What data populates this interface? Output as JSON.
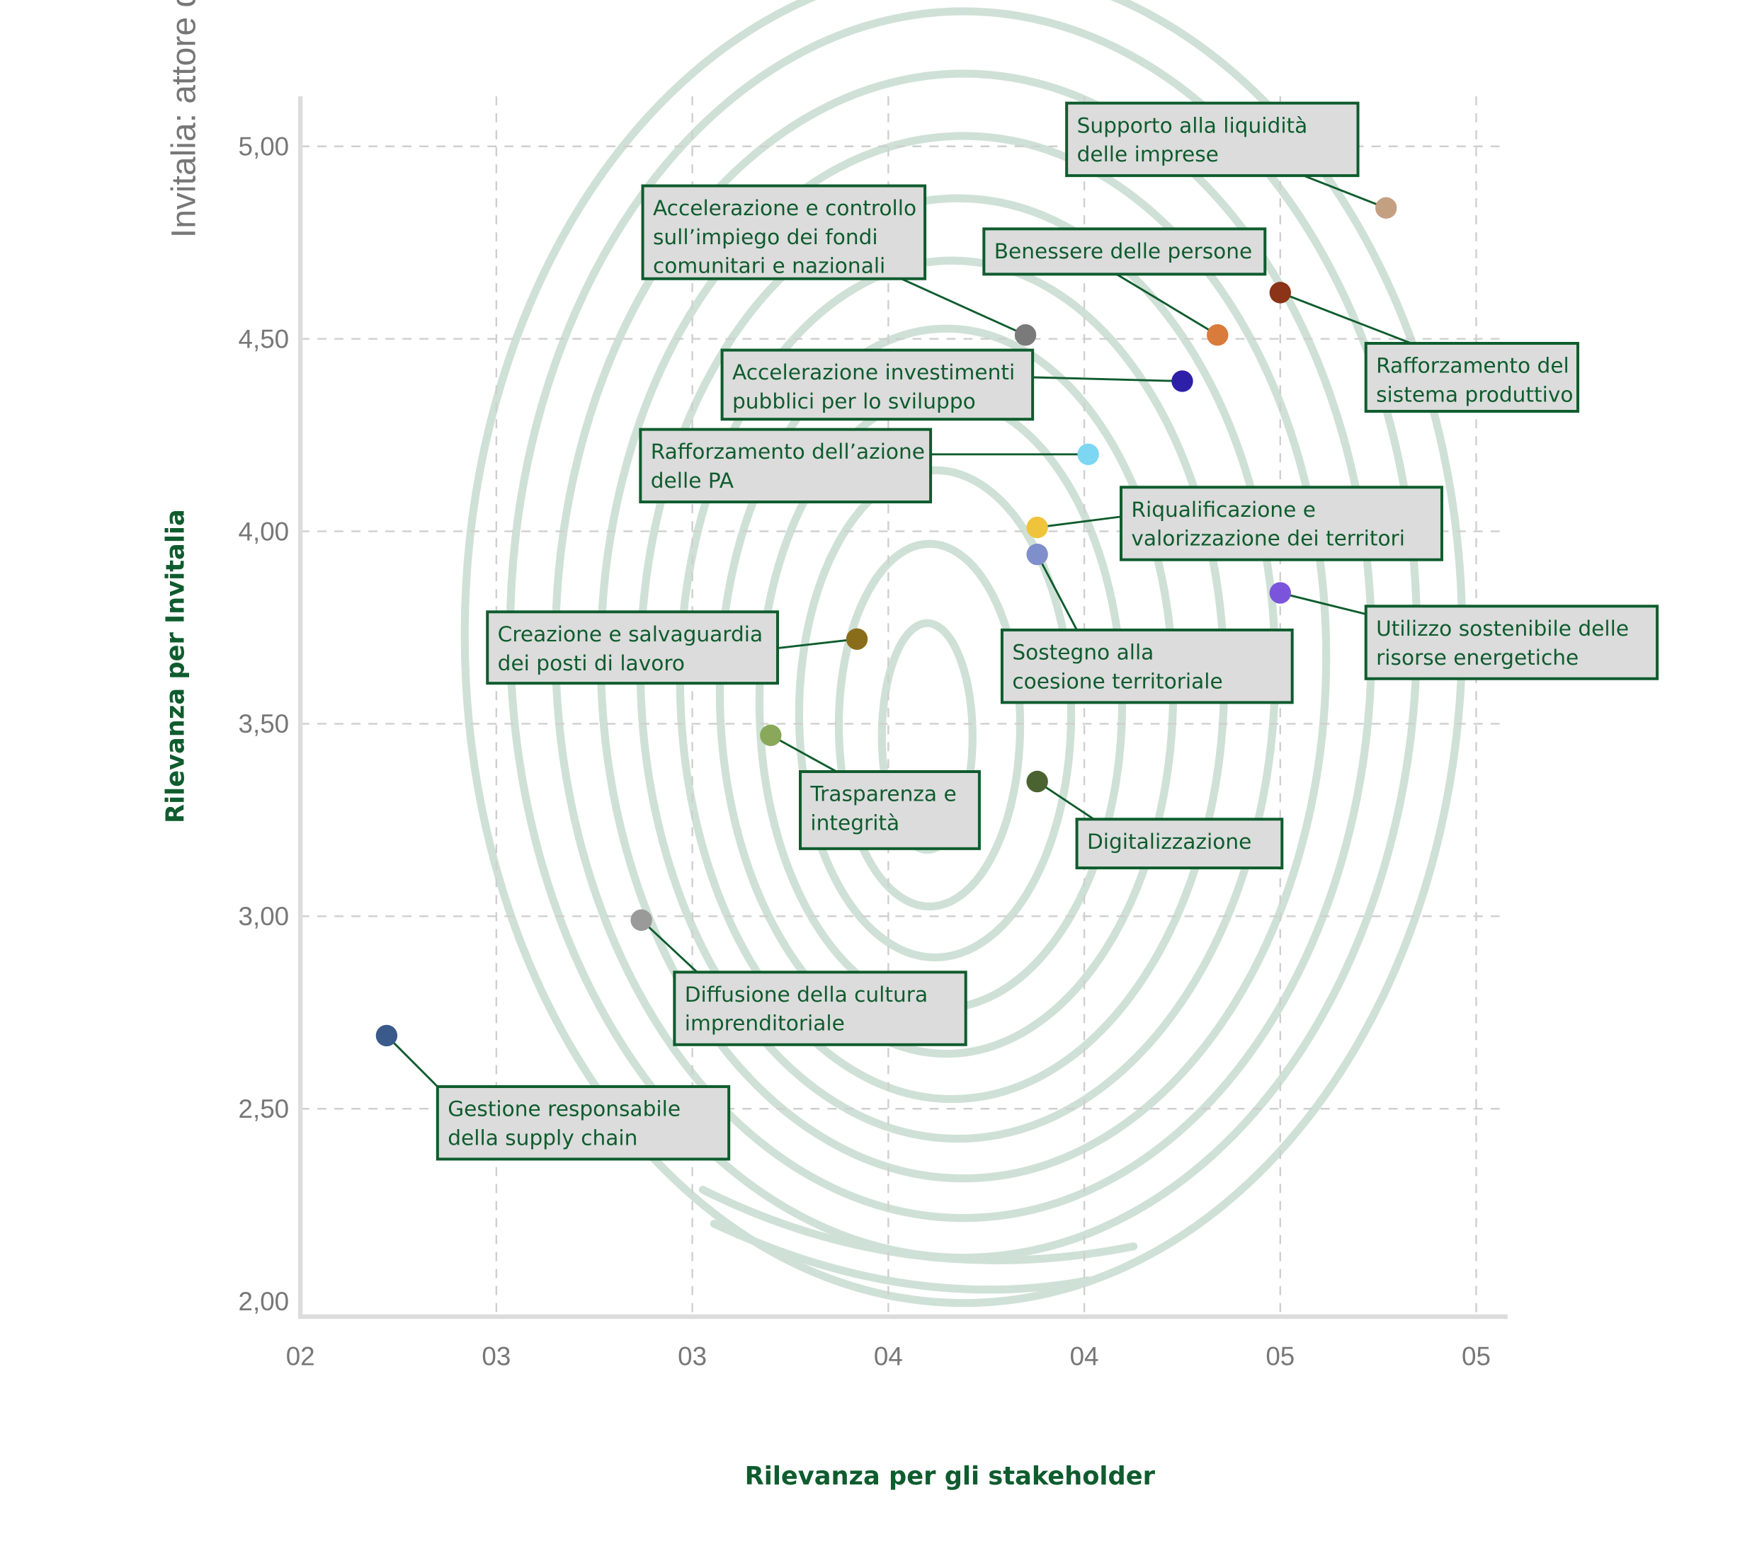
{
  "chart_data": {
    "type": "scatter",
    "side_title": "Invitalia: attore d",
    "x_label": "Rilevanza per gli stakeholder",
    "y_label": "Rilevanza per Invitalia",
    "xlim": [
      2,
      5.08
    ],
    "ylim": [
      1.96,
      5.13
    ],
    "xticks": [
      {
        "value": 2,
        "label": "02"
      },
      {
        "value": 2.5,
        "label": "03"
      },
      {
        "value": 3,
        "label": "03"
      },
      {
        "value": 3.5,
        "label": "04"
      },
      {
        "value": 4,
        "label": "04"
      },
      {
        "value": 4.5,
        "label": "05"
      },
      {
        "value": 5,
        "label": "05"
      }
    ],
    "yticks": [
      {
        "value": 2,
        "label": "2,00"
      },
      {
        "value": 2.5,
        "label": "2,50"
      },
      {
        "value": 3,
        "label": "3,00"
      },
      {
        "value": 3.5,
        "label": "3,50"
      },
      {
        "value": 4,
        "label": "4,00"
      },
      {
        "value": 4.5,
        "label": "4,50"
      },
      {
        "value": 5,
        "label": "5,00"
      }
    ],
    "grid": true,
    "points": [
      {
        "label": [
          "Supporto alla liquidità",
          "delle imprese"
        ],
        "x": 4.77,
        "y": 4.84,
        "color": "#c4a083"
      },
      {
        "label": [
          "Accelerazione e controllo",
          "sull’impiego dei fondi",
          "comunitari e nazionali"
        ],
        "x": 3.85,
        "y": 4.51,
        "color": "#7a7a7a"
      },
      {
        "label": [
          "Benessere delle persone"
        ],
        "x": 4.34,
        "y": 4.51,
        "color": "#d97b3a"
      },
      {
        "label": [
          "Rafforzamento del",
          "sistema produttivo"
        ],
        "x": 4.5,
        "y": 4.62,
        "color": "#8b3418"
      },
      {
        "label": [
          "Accelerazione investimenti",
          "pubblici per lo sviluppo"
        ],
        "x": 4.25,
        "y": 4.39,
        "color": "#2e1fa8"
      },
      {
        "label": [
          "Rafforzamento dell’azione",
          "delle PA"
        ],
        "x": 4.01,
        "y": 4.2,
        "color": "#7dd6f2"
      },
      {
        "label": [
          "Riqualificazione e",
          "valorizzazione dei territori"
        ],
        "x": 3.88,
        "y": 4.01,
        "color": "#f0c43a"
      },
      {
        "label": [
          "Sostegno alla",
          "coesione territoriale"
        ],
        "x": 3.88,
        "y": 3.94,
        "color": "#7f8fcc"
      },
      {
        "label": [
          "Utilizzo sostenibile delle",
          "risorse energetiche"
        ],
        "x": 4.5,
        "y": 3.84,
        "color": "#7a55dc"
      },
      {
        "label": [
          "Creazione e salvaguardia",
          "dei posti di lavoro"
        ],
        "x": 3.42,
        "y": 3.72,
        "color": "#8a6d1a"
      },
      {
        "label": [
          "Trasparenza e",
          "integrità"
        ],
        "x": 3.2,
        "y": 3.47,
        "color": "#8aa85a"
      },
      {
        "label": [
          "Digitalizzazione"
        ],
        "x": 3.88,
        "y": 3.35,
        "color": "#4a6330"
      },
      {
        "label": [
          "Diffusione della cultura",
          "imprenditoriale"
        ],
        "x": 2.87,
        "y": 2.99,
        "color": "#9a9a9a"
      },
      {
        "label": [
          "Gestione responsabile",
          "della supply chain"
        ],
        "x": 2.22,
        "y": 2.69,
        "color": "#3a5a8c"
      }
    ]
  }
}
